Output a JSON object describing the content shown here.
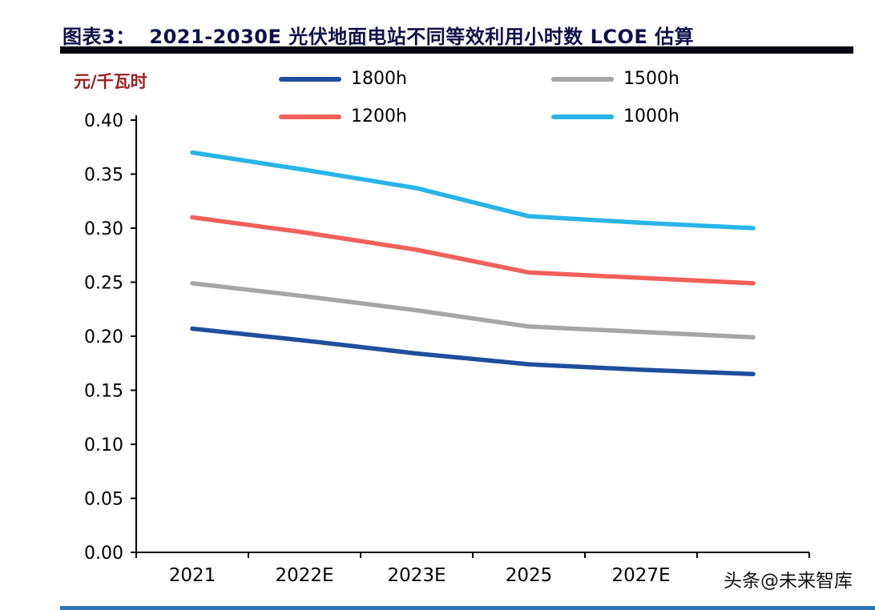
{
  "header": {
    "title": "图表3：  2021-2030E 光伏地面电站不同等效利用小时数 LCOE 估算"
  },
  "watermark": "头条@未来智库",
  "chart_data": {
    "type": "line",
    "title": "2021-2030E 光伏地面电站不同等效利用小时数 LCOE 估算",
    "ylabel": "元/千瓦时",
    "xlabel": "",
    "ylim": [
      0.0,
      0.4
    ],
    "ytick_step": 0.05,
    "grid": false,
    "legend_position": "top",
    "x_tick_labels": [
      "2021",
      "2022E",
      "2023E",
      "2025",
      "2027E",
      ""
    ],
    "series": [
      {
        "name": "1800h",
        "color": "#1f4e9c",
        "values": [
          0.207,
          0.196,
          0.184,
          0.174,
          0.169,
          0.165
        ]
      },
      {
        "name": "1500h",
        "color": "#a6a6a6",
        "values": [
          0.249,
          0.237,
          0.224,
          0.209,
          0.204,
          0.199
        ]
      },
      {
        "name": "1200h",
        "color": "#f1605a",
        "values": [
          0.31,
          0.296,
          0.28,
          0.259,
          0.254,
          0.249
        ]
      },
      {
        "name": "1000h",
        "color": "#29b4e8",
        "values": [
          0.37,
          0.354,
          0.337,
          0.311,
          0.305,
          0.3
        ]
      }
    ]
  }
}
